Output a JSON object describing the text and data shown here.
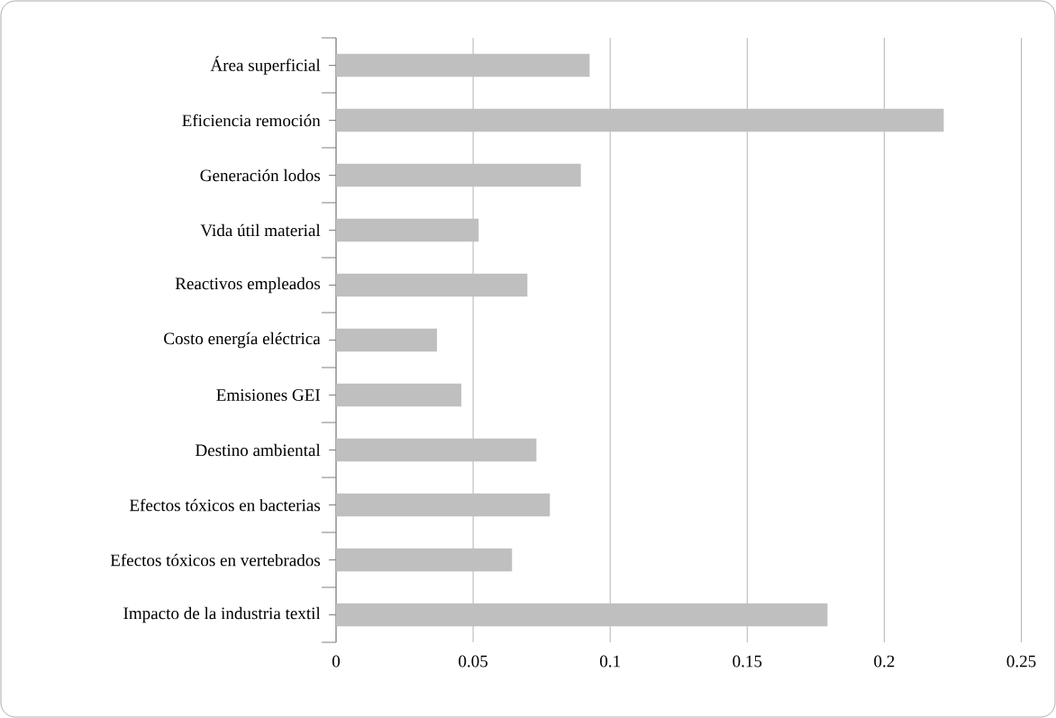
{
  "chart_data": {
    "type": "bar",
    "orientation": "horizontal",
    "categories": [
      "Área superficial",
      "Eficiencia remoción",
      "Generación lodos",
      "Vida útil material",
      "Reactivos empleados",
      "Costo energía eléctrica",
      "Emisiones GEI",
      "Destino ambiental",
      "Efectos tóxicos en bacterias",
      "Efectos tóxicos en vertebrados",
      "Impacto de la industria textil"
    ],
    "values": [
      0.0925,
      0.2217,
      0.0893,
      0.052,
      0.0698,
      0.0368,
      0.0457,
      0.0731,
      0.078,
      0.0642,
      0.1793
    ],
    "color": "#bfbfbf",
    "xlim": [
      0,
      0.25
    ],
    "xticks": [
      0,
      0.05,
      0.1,
      0.15,
      0.2,
      0.25
    ],
    "grid": "x"
  }
}
